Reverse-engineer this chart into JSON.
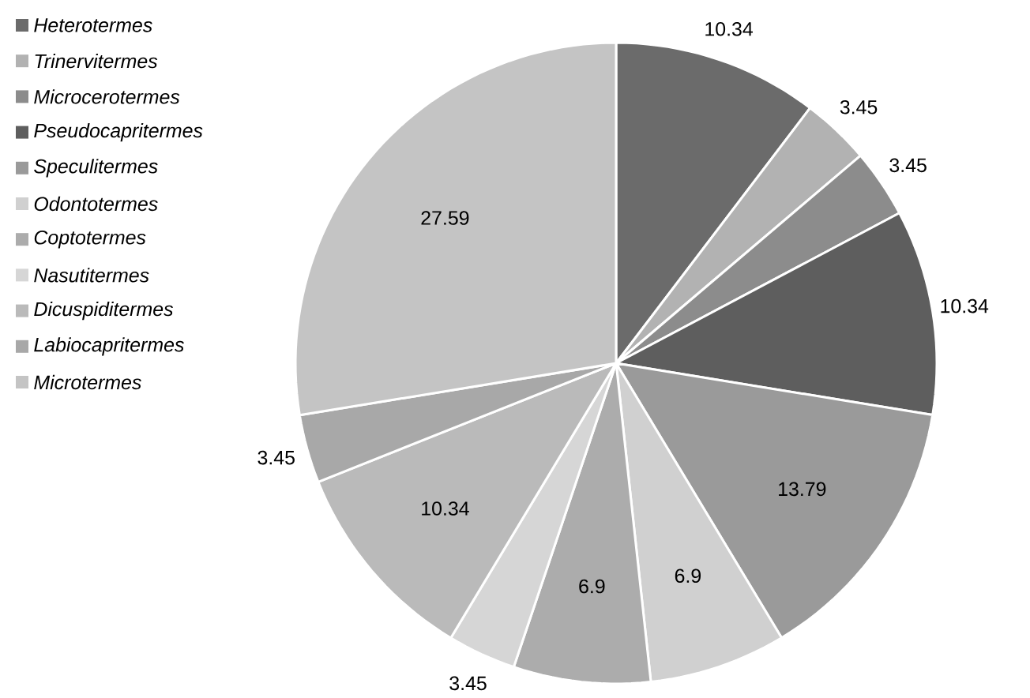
{
  "chart_data": {
    "type": "pie",
    "categories": [
      "Heterotermes",
      "Trinervitermes",
      "Microcerotermes",
      "Pseudocapritermes",
      "Speculitermes",
      "Odontotermes",
      "Coptotermes",
      "Nasutitermes",
      "Dicuspiditermes",
      "Labiocapritermes",
      "Microtermes"
    ],
    "values": [
      10.34,
      3.45,
      3.45,
      10.34,
      13.79,
      6.9,
      6.9,
      3.45,
      10.34,
      3.45,
      27.59
    ],
    "colors": [
      "#6b6b6b",
      "#b2b2b2",
      "#8c8c8c",
      "#5e5e5e",
      "#9a9a9a",
      "#d0d0d0",
      "#acacac",
      "#d6d6d6",
      "#bababa",
      "#a8a8a8",
      "#c4c4c4"
    ],
    "data_labels": true,
    "legend": "left"
  }
}
